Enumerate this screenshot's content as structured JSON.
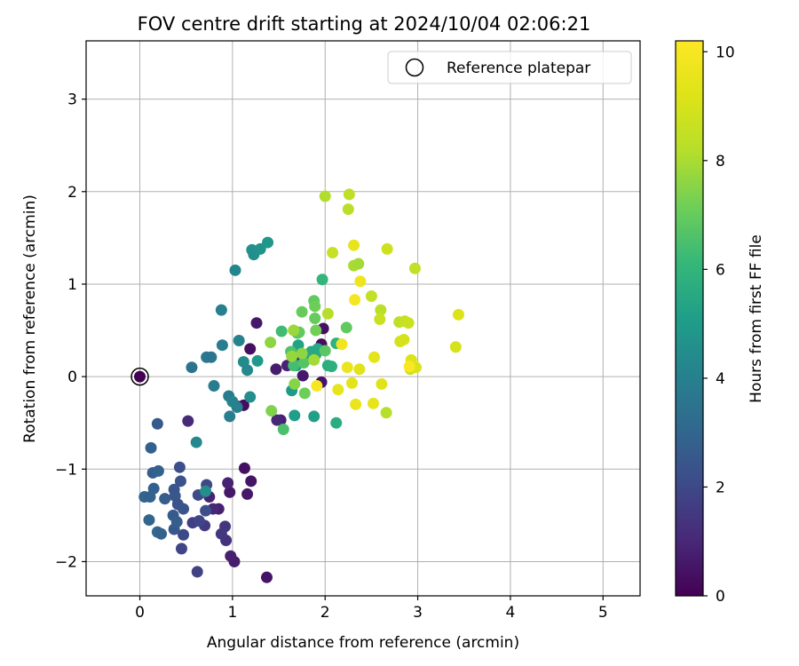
{
  "chart_data": {
    "type": "scatter",
    "title": "FOV centre drift starting at 2024/10/04 02:06:21",
    "xlabel": "Angular distance from reference (arcmin)",
    "ylabel": "Rotation from reference (arcmin)",
    "xlim": [
      -0.58,
      5.4
    ],
    "ylim": [
      -2.37,
      3.63
    ],
    "xticks": [
      {
        "value": 0,
        "label": "0"
      },
      {
        "value": 1,
        "label": "1"
      },
      {
        "value": 2,
        "label": "2"
      },
      {
        "value": 3,
        "label": "3"
      },
      {
        "value": 4,
        "label": "4"
      },
      {
        "value": 5,
        "label": "5"
      }
    ],
    "yticks": [
      {
        "value": -2,
        "label": "−2"
      },
      {
        "value": -1,
        "label": "−1"
      },
      {
        "value": 0,
        "label": "0"
      },
      {
        "value": 1,
        "label": "1"
      },
      {
        "value": 2,
        "label": "2"
      },
      {
        "value": 3,
        "label": "3"
      }
    ],
    "grid": true,
    "legend": {
      "position": "top-right",
      "entries": [
        "Reference platepar"
      ]
    },
    "reference": {
      "label": "Reference platepar",
      "x": 0,
      "y": 0
    },
    "colorbar": {
      "label": "Hours from first FF file",
      "colormap": "viridis",
      "min": 0,
      "max": 10.2,
      "ticks": [
        {
          "value": 0,
          "label": "0"
        },
        {
          "value": 2,
          "label": "2"
        },
        {
          "value": 4,
          "label": "4"
        },
        {
          "value": 6,
          "label": "6"
        },
        {
          "value": 8,
          "label": "8"
        },
        {
          "value": 10,
          "label": "10"
        }
      ]
    },
    "series": [
      {
        "points": [
          {
            "x": 1.12,
            "y": -0.31,
            "c": 0.3
          },
          {
            "x": 1.13,
            "y": -0.99,
            "c": 0.4
          },
          {
            "x": 1.2,
            "y": -1.13,
            "c": 0.5
          },
          {
            "x": 1.16,
            "y": -1.27,
            "c": 0.6
          },
          {
            "x": 1.37,
            "y": -2.17,
            "c": 0.5
          },
          {
            "x": 1.02,
            "y": -2.0,
            "c": 0.7
          },
          {
            "x": 0.98,
            "y": -1.94,
            "c": 0.8
          },
          {
            "x": 0.97,
            "y": -1.25,
            "c": 0.6
          },
          {
            "x": 0.95,
            "y": -1.15,
            "c": 0.9
          },
          {
            "x": 0.85,
            "y": -1.43,
            "c": 0.8
          },
          {
            "x": 0.79,
            "y": -1.43,
            "c": 1.0
          },
          {
            "x": 0.75,
            "y": -1.3,
            "c": 0.9
          },
          {
            "x": 1.26,
            "y": 0.58,
            "c": 0.6
          },
          {
            "x": 1.19,
            "y": 0.3,
            "c": 0.4
          },
          {
            "x": 1.05,
            "y": -0.32,
            "c": 0.5
          },
          {
            "x": 1.52,
            "y": -0.47,
            "c": 0.8
          },
          {
            "x": 1.48,
            "y": -0.47,
            "c": 1.0
          },
          {
            "x": 1.47,
            "y": 0.08,
            "c": 0.7
          },
          {
            "x": 1.59,
            "y": 0.12,
            "c": 0.9
          },
          {
            "x": 1.69,
            "y": 0.22,
            "c": 1.0
          },
          {
            "x": 1.76,
            "y": 0.01,
            "c": 0.6
          },
          {
            "x": 1.96,
            "y": 0.35,
            "c": 0.3
          },
          {
            "x": 1.96,
            "y": -0.06,
            "c": 0.5
          },
          {
            "x": 1.98,
            "y": 0.52,
            "c": 0.4
          },
          {
            "x": 0.52,
            "y": -0.48,
            "c": 1.1
          },
          {
            "x": 0.93,
            "y": -1.77,
            "c": 1.3
          },
          {
            "x": 0.92,
            "y": -1.62,
            "c": 1.4
          },
          {
            "x": 0.88,
            "y": -1.7,
            "c": 1.5
          },
          {
            "x": 0.7,
            "y": -1.61,
            "c": 1.6
          },
          {
            "x": 0.62,
            "y": -2.11,
            "c": 1.8
          },
          {
            "x": 0.45,
            "y": -1.86,
            "c": 1.9
          },
          {
            "x": 0.47,
            "y": -1.71,
            "c": 2.0
          },
          {
            "x": 0.57,
            "y": -1.58,
            "c": 1.7
          },
          {
            "x": 0.64,
            "y": -1.56,
            "c": 1.9
          },
          {
            "x": 0.63,
            "y": -1.28,
            "c": 2.1
          },
          {
            "x": 0.71,
            "y": -1.45,
            "c": 2.2
          },
          {
            "x": 0.72,
            "y": -1.17,
            "c": 2.0
          },
          {
            "x": 0.43,
            "y": -0.98,
            "c": 2.2
          },
          {
            "x": 0.44,
            "y": -1.13,
            "c": 2.3
          },
          {
            "x": 0.37,
            "y": -1.22,
            "c": 2.4
          },
          {
            "x": 0.38,
            "y": -1.29,
            "c": 2.5
          },
          {
            "x": 0.41,
            "y": -1.38,
            "c": 2.3
          },
          {
            "x": 0.47,
            "y": -1.43,
            "c": 2.4
          },
          {
            "x": 0.36,
            "y": -1.5,
            "c": 2.6
          },
          {
            "x": 0.37,
            "y": -1.65,
            "c": 2.5
          },
          {
            "x": 0.4,
            "y": -1.57,
            "c": 2.7
          },
          {
            "x": 0.19,
            "y": -0.51,
            "c": 2.6
          },
          {
            "x": 0.12,
            "y": -0.77,
            "c": 2.8
          },
          {
            "x": 0.14,
            "y": -1.04,
            "c": 2.7
          },
          {
            "x": 0.2,
            "y": -1.02,
            "c": 2.9
          },
          {
            "x": 0.15,
            "y": -1.21,
            "c": 2.8
          },
          {
            "x": 0.05,
            "y": -1.3,
            "c": 3.0
          },
          {
            "x": 0.11,
            "y": -1.3,
            "c": 2.9
          },
          {
            "x": 0.27,
            "y": -1.32,
            "c": 2.7
          },
          {
            "x": 0.1,
            "y": -1.55,
            "c": 3.0
          },
          {
            "x": 0.19,
            "y": -1.68,
            "c": 3.1
          },
          {
            "x": 0.23,
            "y": -1.7,
            "c": 2.9
          },
          {
            "x": 0.61,
            "y": -0.71,
            "c": 4.3
          },
          {
            "x": 0.71,
            "y": -1.24,
            "c": 4.5
          },
          {
            "x": 0.56,
            "y": 0.1,
            "c": 3.5
          },
          {
            "x": 0.72,
            "y": 0.21,
            "c": 3.7
          },
          {
            "x": 0.77,
            "y": 0.21,
            "c": 3.6
          },
          {
            "x": 0.8,
            "y": -0.1,
            "c": 3.8
          },
          {
            "x": 0.89,
            "y": 0.34,
            "c": 3.9
          },
          {
            "x": 0.88,
            "y": 0.72,
            "c": 4.0
          },
          {
            "x": 0.96,
            "y": -0.21,
            "c": 3.8
          },
          {
            "x": 0.97,
            "y": -0.43,
            "c": 3.9
          },
          {
            "x": 1.0,
            "y": -0.27,
            "c": 4.1
          },
          {
            "x": 1.05,
            "y": -0.33,
            "c": 4.0
          },
          {
            "x": 1.03,
            "y": 1.15,
            "c": 4.2
          },
          {
            "x": 1.07,
            "y": 0.39,
            "c": 4.1
          },
          {
            "x": 1.12,
            "y": 0.16,
            "c": 4.4
          },
          {
            "x": 1.16,
            "y": 0.07,
            "c": 4.3
          },
          {
            "x": 1.19,
            "y": -0.22,
            "c": 4.5
          },
          {
            "x": 1.21,
            "y": 1.37,
            "c": 4.6
          },
          {
            "x": 1.23,
            "y": 1.32,
            "c": 4.5
          },
          {
            "x": 1.3,
            "y": 1.38,
            "c": 4.7
          },
          {
            "x": 1.38,
            "y": 1.45,
            "c": 4.8
          },
          {
            "x": 1.27,
            "y": 0.17,
            "c": 4.9
          },
          {
            "x": 1.64,
            "y": -0.15,
            "c": 5.0
          },
          {
            "x": 1.67,
            "y": -0.42,
            "c": 5.1
          },
          {
            "x": 1.69,
            "y": 0.12,
            "c": 5.2
          },
          {
            "x": 1.71,
            "y": 0.34,
            "c": 5.3
          },
          {
            "x": 1.88,
            "y": -0.43,
            "c": 5.2
          },
          {
            "x": 1.82,
            "y": 0.2,
            "c": 5.4
          },
          {
            "x": 1.85,
            "y": 0.27,
            "c": 5.5
          },
          {
            "x": 1.9,
            "y": 0.24,
            "c": 5.6
          },
          {
            "x": 1.92,
            "y": 0.3,
            "c": 5.5
          },
          {
            "x": 2.03,
            "y": 0.12,
            "c": 5.7
          },
          {
            "x": 2.07,
            "y": 0.11,
            "c": 5.8
          },
          {
            "x": 2.12,
            "y": 0.36,
            "c": 5.9
          },
          {
            "x": 2.12,
            "y": -0.5,
            "c": 5.7
          },
          {
            "x": 1.97,
            "y": 1.05,
            "c": 6.0
          },
          {
            "x": 1.53,
            "y": 0.49,
            "c": 6.3
          },
          {
            "x": 1.55,
            "y": -0.57,
            "c": 6.5
          },
          {
            "x": 1.63,
            "y": 0.27,
            "c": 6.6
          },
          {
            "x": 1.66,
            "y": 0.12,
            "c": 6.4
          },
          {
            "x": 1.7,
            "y": 0.47,
            "c": 6.8
          },
          {
            "x": 1.72,
            "y": 0.48,
            "c": 6.9
          },
          {
            "x": 1.75,
            "y": 0.7,
            "c": 7.0
          },
          {
            "x": 1.77,
            "y": 0.15,
            "c": 6.7
          },
          {
            "x": 1.78,
            "y": -0.18,
            "c": 7.1
          },
          {
            "x": 1.88,
            "y": 0.82,
            "c": 6.9
          },
          {
            "x": 1.89,
            "y": 0.76,
            "c": 7.1
          },
          {
            "x": 1.89,
            "y": 0.63,
            "c": 7.0
          },
          {
            "x": 1.9,
            "y": 0.5,
            "c": 7.2
          },
          {
            "x": 2.0,
            "y": 0.28,
            "c": 6.8
          },
          {
            "x": 2.23,
            "y": 0.53,
            "c": 6.9
          },
          {
            "x": 1.41,
            "y": 0.37,
            "c": 7.6
          },
          {
            "x": 1.42,
            "y": -0.37,
            "c": 7.4
          },
          {
            "x": 1.66,
            "y": 0.5,
            "c": 7.8
          },
          {
            "x": 1.67,
            "y": -0.08,
            "c": 7.5
          },
          {
            "x": 1.64,
            "y": 0.22,
            "c": 7.7
          },
          {
            "x": 1.75,
            "y": 0.25,
            "c": 7.6
          },
          {
            "x": 1.88,
            "y": 0.18,
            "c": 7.9
          },
          {
            "x": 2.0,
            "y": 1.95,
            "c": 8.1
          },
          {
            "x": 2.03,
            "y": 0.68,
            "c": 8.2
          },
          {
            "x": 2.08,
            "y": 1.34,
            "c": 8.6
          },
          {
            "x": 2.25,
            "y": 1.81,
            "c": 8.3
          },
          {
            "x": 2.26,
            "y": 1.97,
            "c": 8.4
          },
          {
            "x": 2.31,
            "y": 1.2,
            "c": 8.0
          },
          {
            "x": 2.36,
            "y": 1.22,
            "c": 7.9
          },
          {
            "x": 2.5,
            "y": 0.87,
            "c": 8.5
          },
          {
            "x": 2.6,
            "y": 0.72,
            "c": 8.3
          },
          {
            "x": 2.59,
            "y": 0.62,
            "c": 8.7
          },
          {
            "x": 2.66,
            "y": -0.39,
            "c": 8.2
          },
          {
            "x": 2.67,
            "y": 1.38,
            "c": 8.8
          },
          {
            "x": 2.8,
            "y": 0.59,
            "c": 8.4
          },
          {
            "x": 2.81,
            "y": 0.38,
            "c": 8.9
          },
          {
            "x": 2.85,
            "y": 0.4,
            "c": 9.0
          },
          {
            "x": 2.86,
            "y": 0.6,
            "c": 8.6
          },
          {
            "x": 2.9,
            "y": 0.58,
            "c": 8.7
          },
          {
            "x": 2.92,
            "y": 0.08,
            "c": 8.8
          },
          {
            "x": 2.93,
            "y": 0.18,
            "c": 9.2
          },
          {
            "x": 2.97,
            "y": 1.17,
            "c": 8.5
          },
          {
            "x": 2.98,
            "y": 0.1,
            "c": 9.1
          },
          {
            "x": 3.41,
            "y": 0.32,
            "c": 9.0
          },
          {
            "x": 3.44,
            "y": 0.67,
            "c": 9.2
          },
          {
            "x": 1.91,
            "y": -0.1,
            "c": 10.0
          },
          {
            "x": 2.14,
            "y": -0.14,
            "c": 9.5
          },
          {
            "x": 2.18,
            "y": 0.35,
            "c": 9.8
          },
          {
            "x": 2.24,
            "y": 0.1,
            "c": 9.6
          },
          {
            "x": 2.29,
            "y": -0.07,
            "c": 9.4
          },
          {
            "x": 2.31,
            "y": 1.42,
            "c": 9.5
          },
          {
            "x": 2.32,
            "y": 0.83,
            "c": 9.9
          },
          {
            "x": 2.33,
            "y": -0.3,
            "c": 9.6
          },
          {
            "x": 2.37,
            "y": 0.08,
            "c": 9.3
          },
          {
            "x": 2.38,
            "y": 1.03,
            "c": 9.7
          },
          {
            "x": 2.52,
            "y": -0.29,
            "c": 9.5
          },
          {
            "x": 2.53,
            "y": 0.21,
            "c": 9.4
          },
          {
            "x": 2.61,
            "y": -0.08,
            "c": 9.3
          },
          {
            "x": 2.91,
            "y": 0.11,
            "c": 10.1
          }
        ]
      }
    ]
  }
}
